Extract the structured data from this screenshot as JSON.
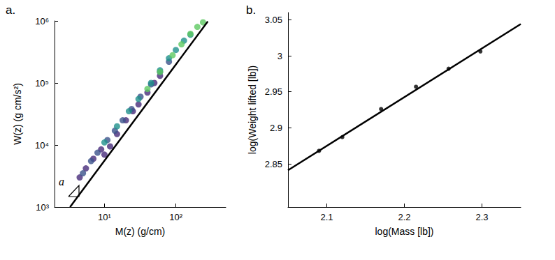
{
  "chart_data": [
    {
      "type": "scatter",
      "title": "a.",
      "x_label": "M(z) (g/cm)",
      "y_label": "W(z) (g cm/s²)",
      "annotation": "a",
      "log": true,
      "grid": false,
      "xlim": [
        2,
        500
      ],
      "xticks": [
        {
          "value": 10,
          "label": "10¹"
        },
        {
          "value": 100,
          "label": "10²"
        }
      ],
      "ylim": [
        1000,
        1000000
      ],
      "yticks": [
        {
          "value": 1000,
          "label": "10³"
        },
        {
          "value": 10000,
          "label": "10⁴"
        },
        {
          "value": 100000,
          "label": "10⁵"
        },
        {
          "value": 1000000,
          "label": "10⁶"
        }
      ],
      "series": [
        {
          "type": "scatter",
          "color": "#472c7a",
          "x": [
            4.5,
            5.5,
            7,
            9,
            10,
            12,
            15,
            20,
            25,
            30,
            40,
            50,
            60
          ],
          "values": [
            3000,
            4200,
            6000,
            8500,
            7000,
            9500,
            15000,
            25000,
            35000,
            45000,
            70000,
            100000,
            130000
          ]
        },
        {
          "type": "scatter",
          "color": "#3b528b",
          "x": [
            5,
            6.5,
            8,
            11,
            14,
            18,
            24,
            32,
            45,
            60,
            80
          ],
          "values": [
            3500,
            5500,
            7500,
            12000,
            17000,
            25000,
            38000,
            60000,
            95000,
            150000,
            220000
          ]
        },
        {
          "type": "scatter",
          "color": "#21918c",
          "x": [
            10,
            15,
            22,
            30,
            45,
            60,
            80,
            100,
            130,
            160
          ],
          "values": [
            11000,
            20000,
            35000,
            55000,
            100000,
            160000,
            250000,
            340000,
            480000,
            600000
          ]
        },
        {
          "type": "scatter",
          "color": "#5ec962",
          "x": [
            40,
            60,
            90,
            120,
            160,
            200,
            240
          ],
          "values": [
            80000,
            150000,
            280000,
            420000,
            620000,
            800000,
            950000
          ]
        },
        {
          "type": "line",
          "color": "#000000",
          "x": [
            3.3,
            280
          ],
          "values": [
            1000,
            980000
          ]
        }
      ]
    },
    {
      "type": "scatter",
      "title": "b.",
      "x_label": "log(Mass [lb])",
      "y_label": "log(Weight lifted [lb])",
      "grid": false,
      "xlim": [
        2.05,
        2.35
      ],
      "xticks": [
        2.1,
        2.2,
        2.3
      ],
      "ylim": [
        2.79,
        3.06
      ],
      "yticks": [
        2.85,
        2.9,
        2.95,
        3,
        3.05
      ],
      "series": [
        {
          "type": "scatter",
          "color": "#000000",
          "x": [
            2.09,
            2.12,
            2.17,
            2.215,
            2.257,
            2.298
          ],
          "values": [
            2.868,
            2.887,
            2.926,
            2.957,
            2.982,
            3.006
          ]
        },
        {
          "type": "line",
          "color": "#000000",
          "x": [
            2.05,
            2.35
          ],
          "values": [
            2.841,
            3.044
          ]
        }
      ]
    }
  ]
}
